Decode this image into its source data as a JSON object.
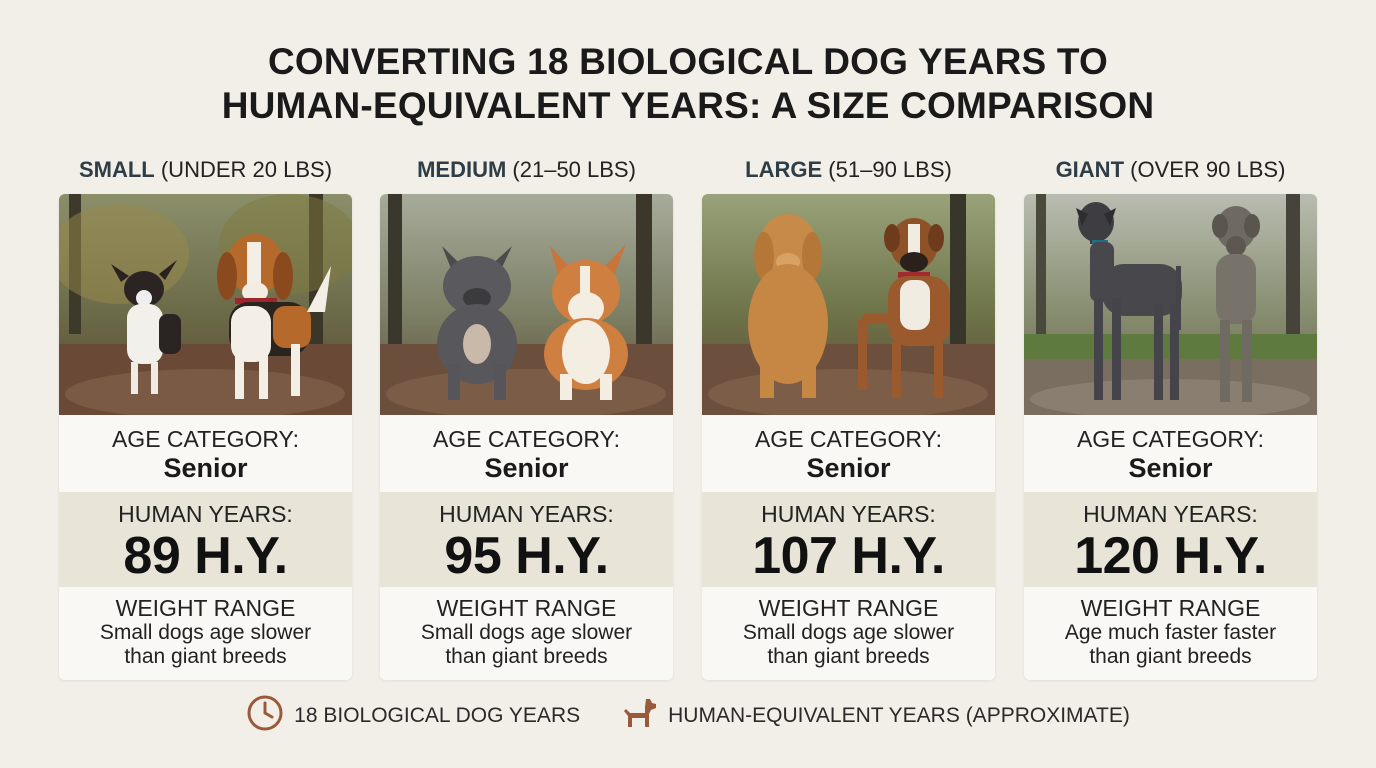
{
  "title": {
    "line1": "CONVERTING 18 BIOLOGICAL DOG YEARS TO",
    "line2": "HUMAN-EQUIVALENT YEARS: A SIZE COMPARISON"
  },
  "columns": [
    {
      "size": "SMALL",
      "range": "(UNDER 20 LBS)",
      "age_label": "AGE CATEGORY:",
      "age_value": "Senior",
      "human_label": "HUMAN YEARS:",
      "human_value": "89 H.Y.",
      "weight_label": "WEIGHT RANGE",
      "note_line1": "Small dogs age slower",
      "note_line2": "than giant breeds"
    },
    {
      "size": "MEDIUM",
      "range": "(21–50 LBS)",
      "age_label": "AGE CATEGORY:",
      "age_value": "Senior",
      "human_label": "HUMAN YEARS:",
      "human_value": "95 H.Y.",
      "weight_label": "WEIGHT RANGE",
      "note_line1": "Small dogs age slower",
      "note_line2": "than giant breeds"
    },
    {
      "size": "LARGE",
      "range": "(51–90 LBS)",
      "age_label": "AGE CATEGORY:",
      "age_value": "Senior",
      "human_label": "HUMAN YEARS:",
      "human_value": "107 H.Y.",
      "weight_label": "WEIGHT RANGE",
      "note_line1": "Small dogs age slower",
      "note_line2": "than giant breeds"
    },
    {
      "size": "GIANT",
      "range": "(OVER 90 LBS)",
      "age_label": "AGE CATEGORY:",
      "age_value": "Senior",
      "human_label": "HUMAN YEARS:",
      "human_value": "120 H.Y.",
      "weight_label": "WEIGHT RANGE",
      "note_line1": "Age much faster faster",
      "note_line2": "than giant breeds"
    }
  ],
  "legend": {
    "clock_label": "18 BIOLOGICAL DOG YEARS",
    "dog_label": "HUMAN-EQUIVALENT YEARS (APPROXIMATE)",
    "clock_icon": "clock-icon",
    "dog_icon": "dog-icon"
  },
  "colors": {
    "background": "#f2efe9",
    "accent": "#9a5a3a",
    "band": "#e8e4d8"
  }
}
